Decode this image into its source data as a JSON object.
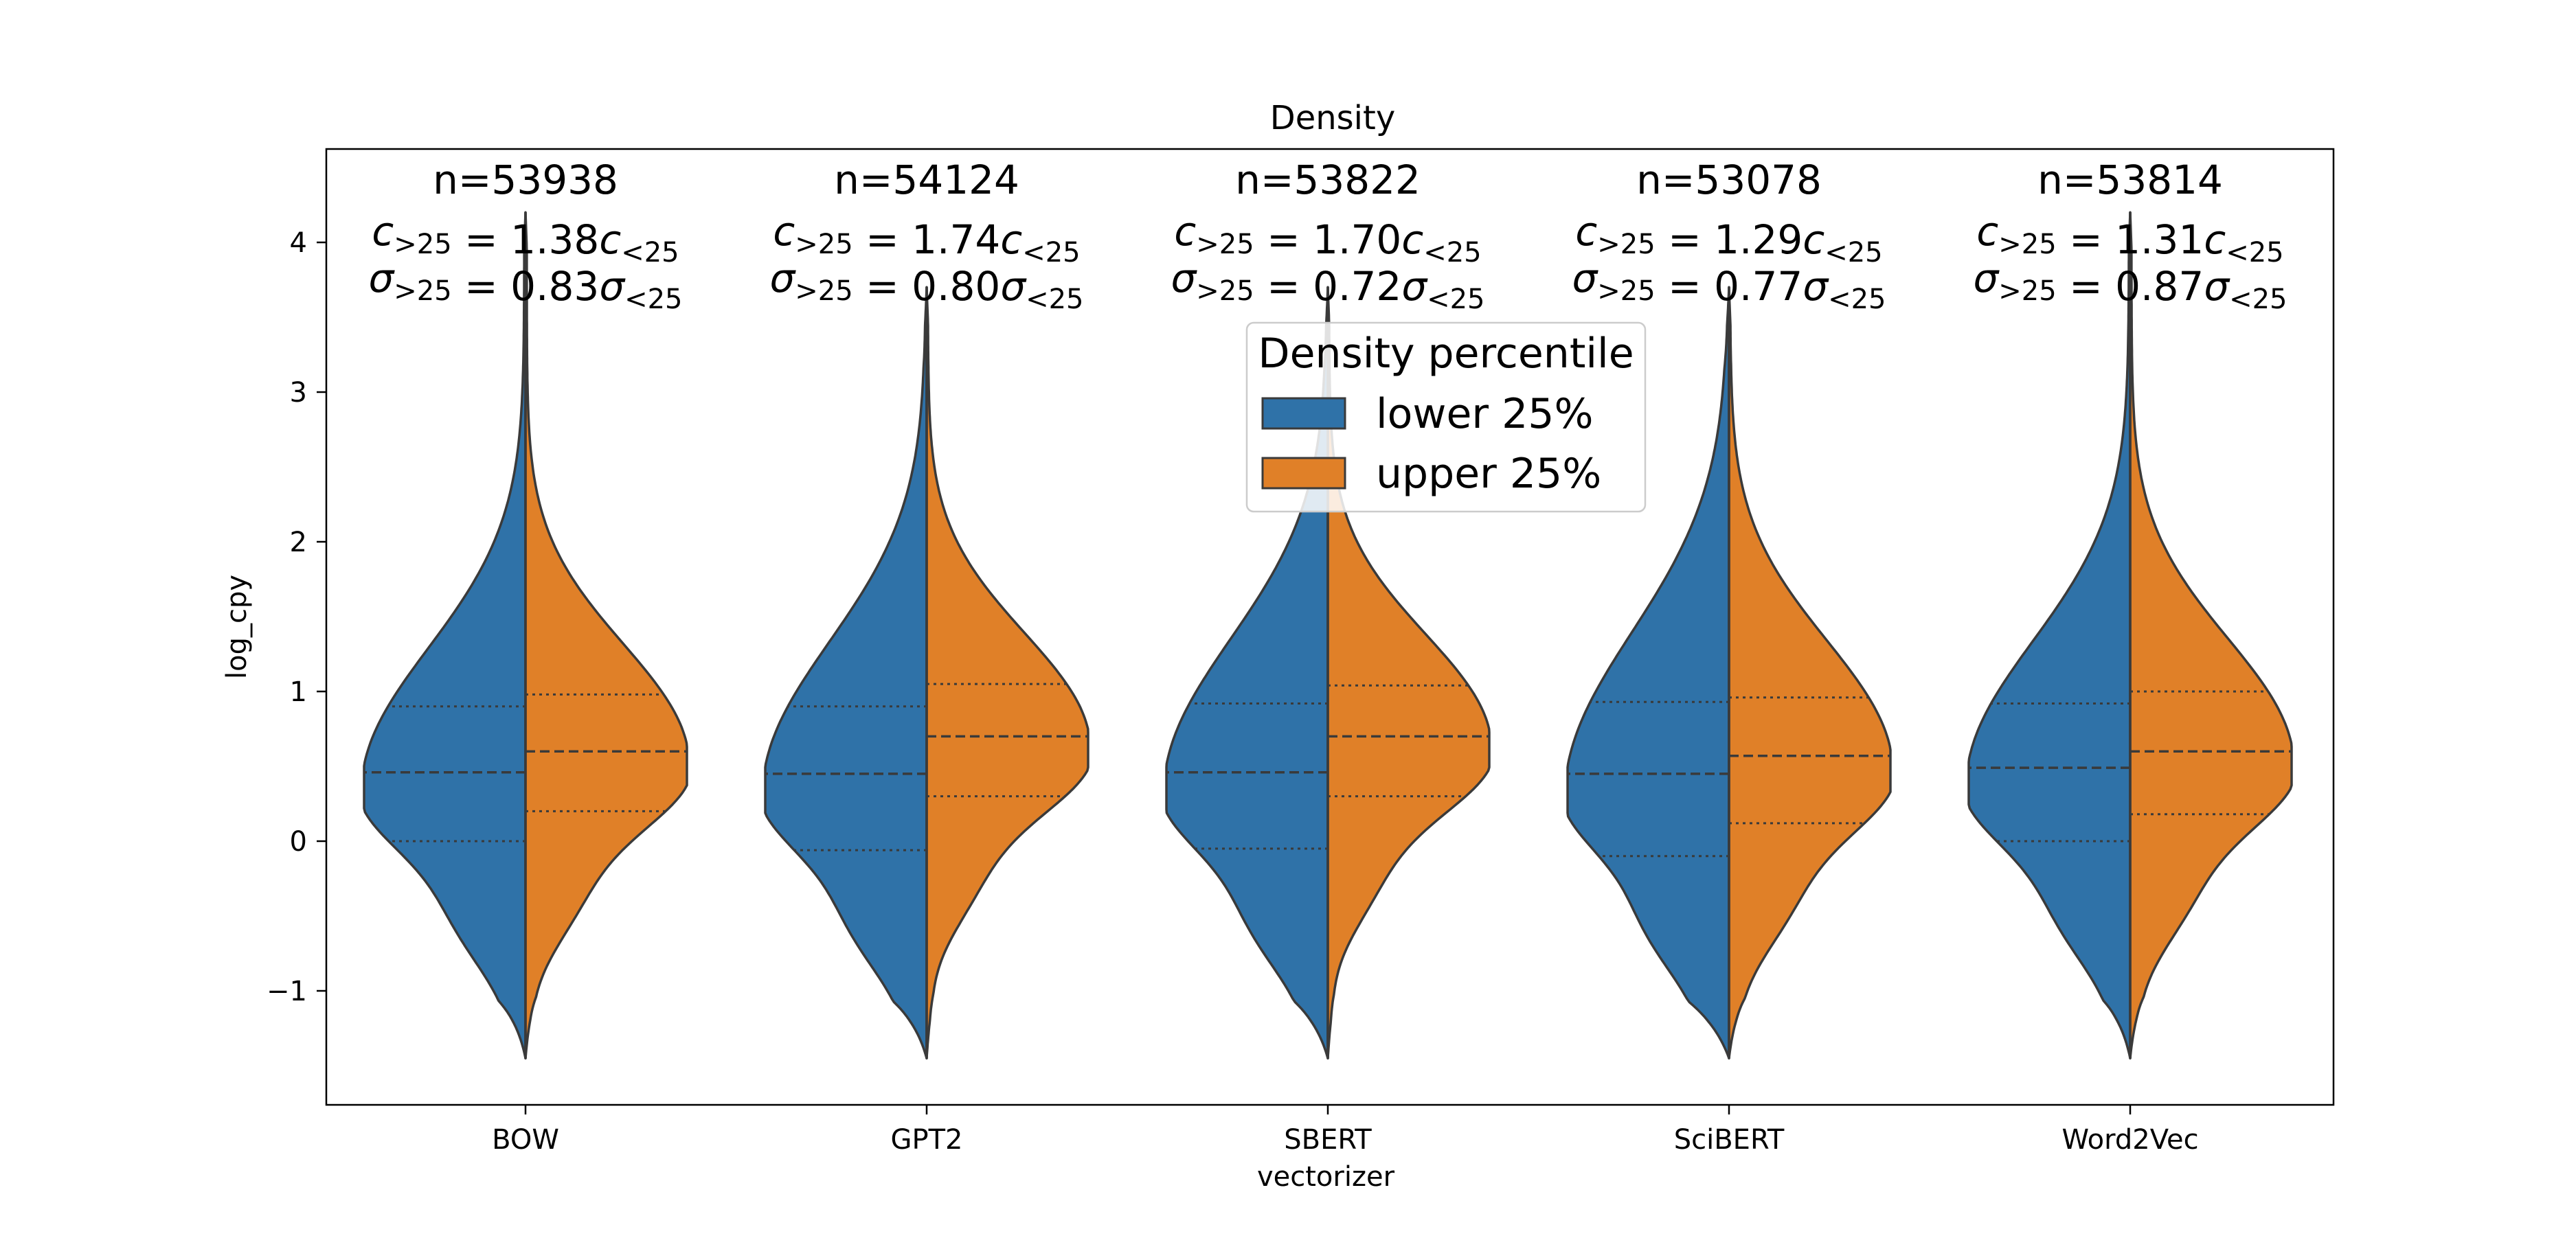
{
  "chart_data": {
    "type": "violin",
    "split": true,
    "title": "Density",
    "xlabel": "vectorizer",
    "ylabel": "log_cpy",
    "ylim": [
      -1.75,
      4.6
    ],
    "yticks": [
      -1,
      0,
      1,
      2,
      3,
      4
    ],
    "ytick_labels": [
      "−1",
      "0",
      "1",
      "2",
      "3",
      "4"
    ],
    "categories": [
      "BOW",
      "GPT2",
      "SBERT",
      "SciBERT",
      "Word2Vec"
    ],
    "legend": {
      "title": "Density percentile",
      "placement": "upper-center",
      "entries": [
        {
          "label": "lower 25%",
          "color": "#2f72a8"
        },
        {
          "label": "upper 25%",
          "color": "#e08028"
        }
      ]
    },
    "series": [
      {
        "name": "lower 25%",
        "side": "left",
        "color": "#2f72a8",
        "q1": [
          0.0,
          -0.06,
          -0.05,
          -0.1,
          0.0
        ],
        "median": [
          0.46,
          0.45,
          0.46,
          0.45,
          0.49
        ],
        "q3": [
          0.9,
          0.9,
          0.92,
          0.93,
          0.92
        ],
        "min": [
          -1.45,
          -1.45,
          -1.45,
          -1.45,
          -1.45
        ],
        "max": [
          4.2,
          3.7,
          3.7,
          3.7,
          4.2
        ]
      },
      {
        "name": "upper 25%",
        "side": "right",
        "color": "#e08028",
        "q1": [
          0.2,
          0.3,
          0.3,
          0.12,
          0.18
        ],
        "median": [
          0.6,
          0.7,
          0.7,
          0.57,
          0.6
        ],
        "q3": [
          0.98,
          1.05,
          1.04,
          0.96,
          1.0
        ],
        "min": [
          -1.45,
          -1.45,
          -1.45,
          -1.45,
          -1.45
        ],
        "max": [
          4.2,
          3.7,
          3.7,
          3.7,
          4.2
        ]
      }
    ],
    "annotations": [
      {
        "n": "n=53938",
        "c_ratio": "1.38",
        "s_ratio": "0.83"
      },
      {
        "n": "n=54124",
        "c_ratio": "1.74",
        "s_ratio": "0.80"
      },
      {
        "n": "n=53822",
        "c_ratio": "1.70",
        "s_ratio": "0.72"
      },
      {
        "n": "n=53078",
        "c_ratio": "1.29",
        "s_ratio": "0.77"
      },
      {
        "n": "n=53814",
        "c_ratio": "1.31",
        "s_ratio": "0.87"
      }
    ]
  }
}
